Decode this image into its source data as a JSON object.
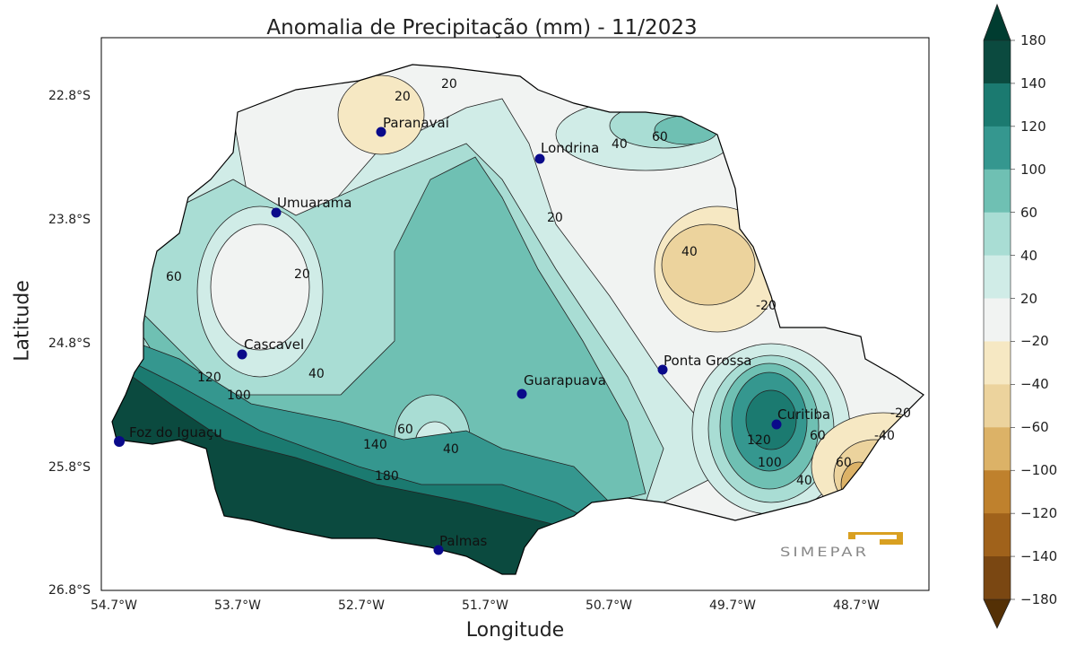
{
  "title": "Anomalia de Precipitação (mm) - 11/2023",
  "xlabel": "Longitude",
  "ylabel": "Latitude",
  "x_ticks": [
    "54.7°W",
    "53.7°W",
    "52.7°W",
    "51.7°W",
    "50.7°W",
    "49.7°W",
    "48.7°W"
  ],
  "y_ticks": [
    "22.8°S",
    "23.8°S",
    "24.8°S",
    "25.8°S",
    "26.8°S"
  ],
  "colorbar": {
    "ticks": [
      "180",
      "140",
      "120",
      "100",
      "60",
      "40",
      "20",
      "−20",
      "−40",
      "−60",
      "−100",
      "−120",
      "−140",
      "−180"
    ],
    "colors": [
      "#0b4a3f",
      "#1b7a70",
      "#35978f",
      "#6fc0b3",
      "#a9ddd4",
      "#d0ece7",
      "#f1f3f2",
      "#f6e8c3",
      "#ecd39d",
      "#dcb267",
      "#bf812d",
      "#a0621b",
      "#7a4712"
    ],
    "over_color": "#003c30",
    "under_color": "#543005"
  },
  "cities": [
    {
      "name": "Paranavaí"
    },
    {
      "name": "Londrina"
    },
    {
      "name": "Umuarama"
    },
    {
      "name": "Cascavel"
    },
    {
      "name": "Guarapuava"
    },
    {
      "name": "Ponta Grossa"
    },
    {
      "name": "Curitiba"
    },
    {
      "name": "Foz do Iguaçu"
    },
    {
      "name": "Palmas"
    }
  ],
  "contour_labels": [
    "20",
    "20",
    "40",
    "60",
    "20",
    "40",
    "-20",
    "60",
    "20",
    "40",
    "120",
    "100",
    "140",
    "180",
    "60",
    "40",
    "120",
    "100",
    "60",
    "40",
    "-20",
    "-40",
    "60"
  ],
  "logo": {
    "text": "SIMEPAR",
    "color": "#d9a021"
  }
}
